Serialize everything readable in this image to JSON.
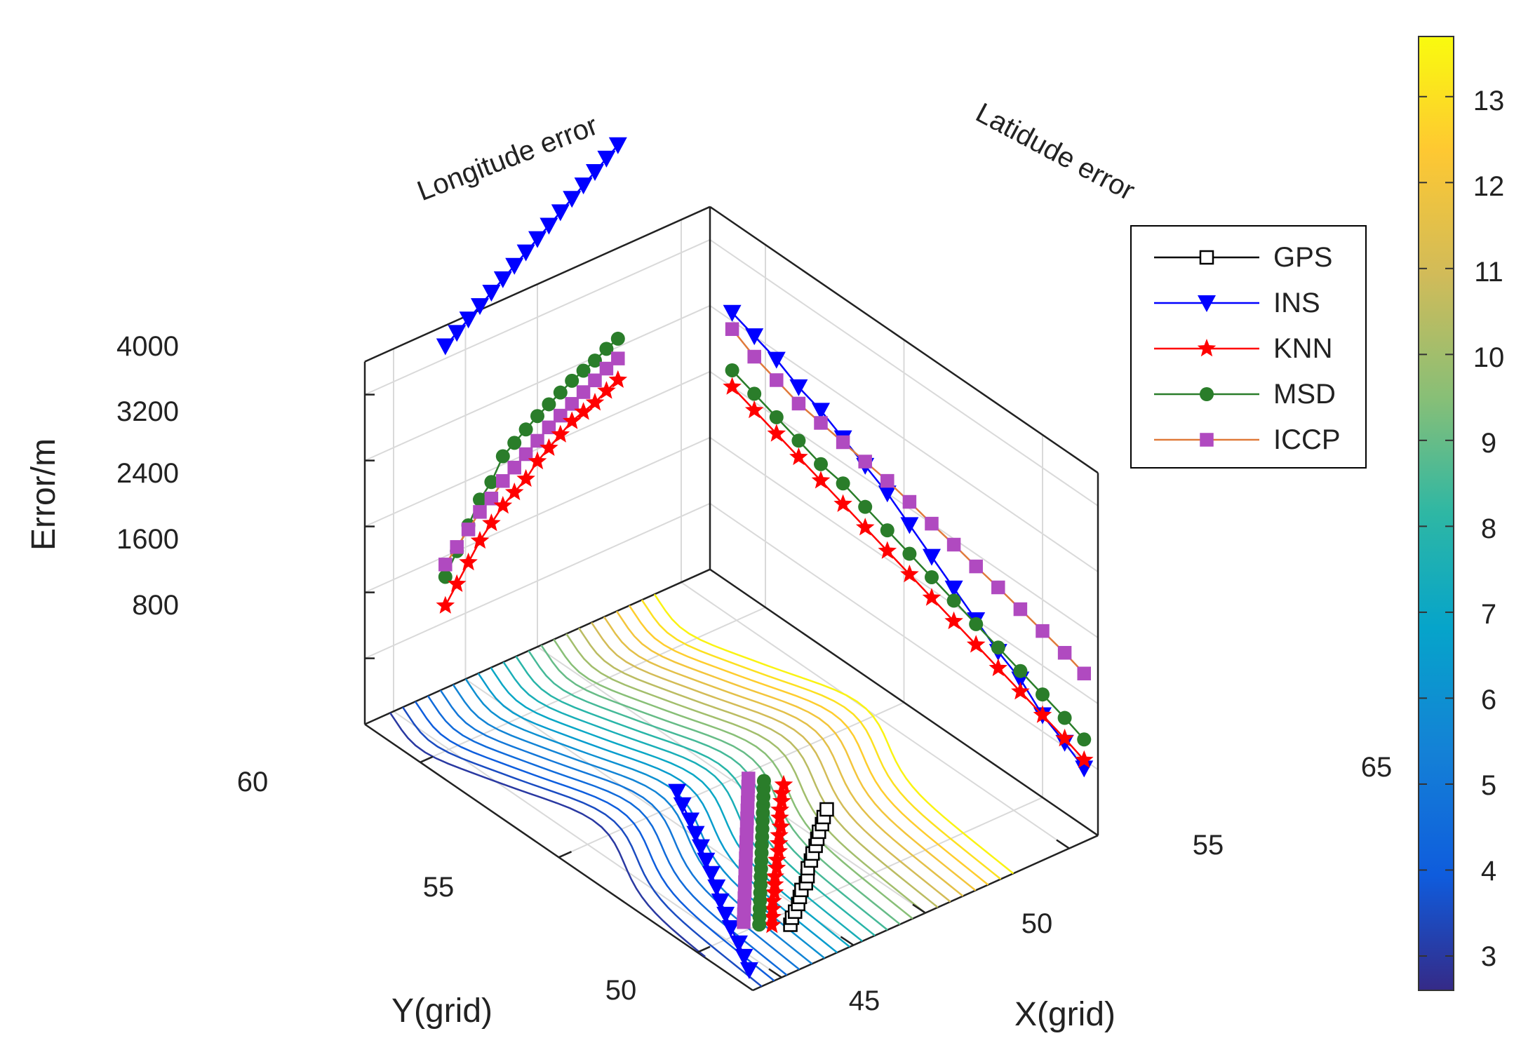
{
  "chart_data": {
    "type": "line",
    "subtype": "3d-axes-with-contour-floor",
    "axes": {
      "x": {
        "label": "X(grid)",
        "ticks": [
          45,
          50,
          55,
          65
        ],
        "tick_labels": [
          "45",
          "50",
          "55",
          "65"
        ],
        "range": [
          43,
          67
        ]
      },
      "y": {
        "label": "Y(grid)",
        "ticks": [
          50,
          55,
          60
        ],
        "tick_labels": [
          "50",
          "55",
          "60"
        ],
        "range": [
          48,
          62
        ]
      },
      "z": {
        "label": "Error/m",
        "ticks": [
          800,
          1600,
          2400,
          3200,
          4000
        ],
        "tick_labels": [
          "800",
          "1600",
          "2400",
          "3200",
          "4000"
        ],
        "range": [
          0,
          4400
        ]
      }
    },
    "panel_titles": {
      "longitude": "Longitude error",
      "latitude": "Latidude error"
    },
    "legend": [
      {
        "name": "GPS",
        "color": "#000000",
        "marker": "square-open"
      },
      {
        "name": "INS",
        "color": "#0000ff",
        "marker": "triangle-down"
      },
      {
        "name": "KNN",
        "color": "#ff0000",
        "marker": "star"
      },
      {
        "name": "MSD",
        "color": "#2a7d2a",
        "marker": "circle"
      },
      {
        "name": "ICCP",
        "color": "#b04ac0",
        "marker": "square",
        "line_color": "#e07a3a"
      }
    ],
    "colorbar": {
      "range": [
        2.6,
        13.7
      ],
      "ticks": [
        3,
        4,
        5,
        6,
        7,
        8,
        9,
        10,
        11,
        12,
        13
      ],
      "tick_labels": [
        "3",
        "4",
        "5",
        "6",
        "7",
        "8",
        "9",
        "10",
        "11",
        "12",
        "13"
      ],
      "colormap": "parula"
    },
    "floor_tracks": [
      {
        "name": "GPS",
        "x": [
          48.6,
          49.1,
          49.6,
          50.2,
          50.7,
          51.2,
          51.8,
          52.3,
          52.8,
          53.4,
          53.9,
          54.5,
          55.0,
          55.5,
          56.1,
          56.6,
          57.2
        ],
        "y": [
          49.55,
          49.75,
          49.9,
          50.1,
          50.3,
          50.5,
          50.65,
          50.85,
          51.1,
          51.3,
          51.5,
          51.7,
          51.9,
          52.1,
          52.3,
          52.5,
          52.7
        ]
      },
      {
        "name": "INS",
        "x": [
          44.1,
          44.7,
          45.3,
          45.9,
          46.5,
          47.1,
          47.8,
          48.4,
          49.0,
          49.6,
          50.2,
          50.8,
          51.4,
          52.0
        ],
        "y": [
          48.7,
          49.2,
          49.7,
          50.3,
          50.8,
          51.3,
          51.8,
          52.3,
          52.8,
          53.3,
          53.8,
          54.3,
          54.9,
          55.4
        ]
      },
      {
        "name": "KNN",
        "x": [
          47.8,
          48.3,
          48.8,
          49.3,
          49.9,
          50.4,
          50.9,
          51.5,
          52.0,
          52.6,
          53.1,
          53.6,
          54.2,
          54.7,
          55.2,
          55.8,
          56.3,
          56.9
        ],
        "y": [
          49.8,
          50.05,
          50.3,
          50.55,
          50.8,
          51.05,
          51.3,
          51.55,
          51.8,
          52.05,
          52.3,
          52.55,
          52.8,
          53.1,
          53.35,
          53.6,
          53.85,
          54.1
        ]
      },
      {
        "name": "MSD",
        "x": [
          47.3,
          47.8,
          48.3,
          48.8,
          49.3,
          49.8,
          50.3,
          50.8,
          51.3,
          51.8,
          52.3,
          52.8,
          53.3,
          53.8,
          54.3,
          54.8,
          55.3,
          55.8,
          56.3
        ],
        "y": [
          50.0,
          50.25,
          50.5,
          50.75,
          51.0,
          51.25,
          51.5,
          51.75,
          52.0,
          52.25,
          52.5,
          52.75,
          53.0,
          53.25,
          53.5,
          53.75,
          54.0,
          54.25,
          54.5
        ]
      },
      {
        "name": "ICCP",
        "x": [
          46.8,
          47.3,
          47.8,
          48.3,
          48.8,
          49.3,
          49.8,
          50.3,
          50.8,
          51.3,
          51.8,
          52.3,
          52.8,
          53.3,
          53.8,
          54.3,
          54.8,
          55.3,
          55.8
        ],
        "y": [
          50.3,
          50.55,
          50.8,
          51.05,
          51.3,
          51.55,
          51.8,
          52.05,
          52.3,
          52.55,
          52.8,
          53.05,
          53.3,
          53.55,
          53.8,
          54.05,
          54.3,
          54.55,
          54.8
        ]
      }
    ],
    "longitude_error": [
      {
        "name": "INS",
        "x": [
          48.6,
          49.4,
          50.2,
          51.0,
          51.8,
          52.6,
          53.4,
          54.2,
          55.0,
          55.8,
          56.6,
          57.4,
          58.2,
          59.0,
          59.8,
          60.6
        ],
        "z": [
          4150,
          4250,
          4350,
          4450,
          4550,
          4650,
          4750,
          4850,
          4950,
          5050,
          5150,
          5250,
          5350,
          5450,
          5550,
          5650
        ]
      },
      {
        "name": "MSD",
        "x": [
          48.6,
          49.4,
          50.2,
          51.0,
          51.8,
          52.6,
          53.4,
          54.2,
          55.0,
          55.8,
          56.6,
          57.4,
          58.2,
          59.0,
          59.8,
          60.6
        ],
        "z": [
          1350,
          1600,
          1850,
          2100,
          2250,
          2500,
          2600,
          2700,
          2800,
          2880,
          2960,
          3040,
          3100,
          3160,
          3240,
          3300
        ]
      },
      {
        "name": "ICCP",
        "x": [
          48.6,
          49.4,
          50.2,
          51.0,
          51.8,
          52.6,
          53.4,
          54.2,
          55.0,
          55.8,
          56.6,
          57.4,
          58.2,
          59.0,
          59.8,
          60.6
        ],
        "z": [
          1500,
          1650,
          1800,
          1950,
          2050,
          2200,
          2300,
          2400,
          2500,
          2600,
          2680,
          2760,
          2840,
          2920,
          3000,
          3060
        ]
      },
      {
        "name": "KNN",
        "x": [
          48.6,
          49.4,
          50.2,
          51.0,
          51.8,
          52.6,
          53.4,
          54.2,
          55.0,
          55.8,
          56.6,
          57.4,
          58.2,
          59.0,
          59.8,
          60.6
        ],
        "z": [
          1000,
          1200,
          1400,
          1600,
          1750,
          1900,
          2000,
          2100,
          2250,
          2350,
          2450,
          2550,
          2600,
          2650,
          2730,
          2800
        ]
      }
    ],
    "latitude_error": [
      {
        "name": "INS",
        "y": [
          61.2,
          60.4,
          59.6,
          58.8,
          58.0,
          57.2,
          56.4,
          55.6,
          54.8,
          54.0,
          53.2,
          52.4,
          51.6,
          50.8,
          50.0,
          49.2,
          48.5
        ],
        "z": [
          3300,
          3200,
          3100,
          2950,
          2850,
          2700,
          2550,
          2400,
          2200,
          2000,
          1800,
          1600,
          1400,
          1250,
          1000,
          850,
          700
        ]
      },
      {
        "name": "ICCP",
        "y": [
          61.2,
          60.4,
          59.6,
          58.8,
          58.0,
          57.2,
          56.4,
          55.6,
          54.8,
          54.0,
          53.2,
          52.4,
          51.6,
          50.8,
          50.0,
          49.2,
          48.5
        ],
        "z": [
          3100,
          2950,
          2850,
          2750,
          2700,
          2650,
          2600,
          2550,
          2480,
          2400,
          2330,
          2250,
          2180,
          2100,
          2020,
          1940,
          1850
        ]
      },
      {
        "name": "MSD",
        "y": [
          61.2,
          60.4,
          59.6,
          58.8,
          58.0,
          57.2,
          56.4,
          55.6,
          54.8,
          54.0,
          53.2,
          52.4,
          51.6,
          50.8,
          50.0,
          49.2,
          48.5
        ],
        "z": [
          2600,
          2500,
          2400,
          2300,
          2200,
          2150,
          2050,
          1950,
          1850,
          1750,
          1650,
          1550,
          1450,
          1350,
          1250,
          1150,
          1050
        ]
      },
      {
        "name": "KNN",
        "y": [
          61.2,
          60.4,
          59.6,
          58.8,
          58.0,
          57.2,
          56.4,
          55.6,
          54.8,
          54.0,
          53.2,
          52.4,
          51.6,
          50.8,
          50.0,
          49.2,
          48.5
        ],
        "z": [
          2400,
          2300,
          2200,
          2100,
          2000,
          1900,
          1800,
          1700,
          1600,
          1500,
          1400,
          1300,
          1200,
          1100,
          1000,
          900,
          800
        ]
      }
    ]
  }
}
